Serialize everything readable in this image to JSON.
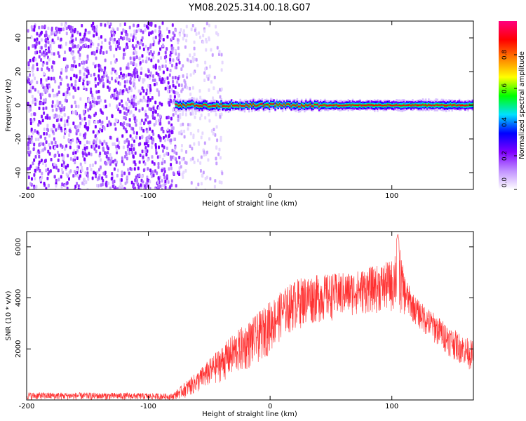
{
  "figure_title": "YM08.2025.314.00.18.G07",
  "chart_data": [
    {
      "type": "heatmap",
      "title": "YM08.2025.314.00.18.G07",
      "xlabel": "Height of straight line (km)",
      "ylabel": "Frequency (Hz)",
      "xlim": [
        -200,
        167
      ],
      "ylim": [
        -50,
        50
      ],
      "xticks": [
        -200,
        -100,
        0,
        100
      ],
      "yticks": [
        -40,
        -20,
        0,
        20,
        40
      ],
      "noise_region": {
        "x": [
          -200,
          -75
        ],
        "y": [
          -50,
          50
        ]
      },
      "sparse_noise_region": {
        "x": [
          -75,
          -40
        ],
        "y": [
          -50,
          50
        ]
      },
      "signal_band": {
        "x": [
          -78,
          167
        ],
        "center_hz": 0,
        "half_width_hz": 3
      },
      "colorbar": {
        "label": "Normalized spectral amplitude",
        "range": [
          0,
          1
        ],
        "ticks": [
          "0.0",
          "0.2",
          "0.4",
          "0.6",
          "0.8"
        ],
        "colors": [
          "#ffffff",
          "#c090ff",
          "#8000ff",
          "#0000ff",
          "#00e0ff",
          "#00ff00",
          "#ffff00",
          "#ff8000",
          "#ff0000",
          "#ff0080"
        ]
      }
    },
    {
      "type": "line",
      "xlabel": "Height of straight line (km)",
      "ylabel": "SNR (10 * v/v)",
      "xlim": [
        -200,
        167
      ],
      "ylim": [
        0,
        6600
      ],
      "xticks": [
        -200,
        -100,
        0,
        100
      ],
      "yticks": [
        2000,
        4000,
        6000
      ],
      "series": [
        {
          "name": "SNR",
          "color": "#ff3030",
          "envelope": {
            "x": [
              -200,
              -120,
              -80,
              -70,
              -60,
              -50,
              -40,
              -30,
              -20,
              -10,
              0,
              10,
              20,
              30,
              40,
              50,
              60,
              70,
              80,
              90,
              100,
              105,
              110,
              115,
              120,
              130,
              140,
              150,
              160,
              167
            ],
            "lower": [
              0,
              0,
              0,
              80,
              250,
              500,
              700,
              900,
              1100,
              1400,
              1800,
              2400,
              2700,
              2900,
              3000,
              3100,
              3200,
              3300,
              3350,
              3400,
              3400,
              3350,
              3300,
              3150,
              2900,
              2400,
              2000,
              1600,
              1300,
              1100
            ],
            "upper": [
              300,
              280,
              250,
              700,
              1100,
              1600,
              2100,
              2600,
              3000,
              3400,
              3900,
              4300,
              4700,
              4900,
              4900,
              4950,
              5000,
              5050,
              5200,
              5300,
              5500,
              6500,
              5000,
              4400,
              4000,
              3600,
              3200,
              2800,
              2500,
              2300
            ]
          }
        }
      ]
    }
  ]
}
